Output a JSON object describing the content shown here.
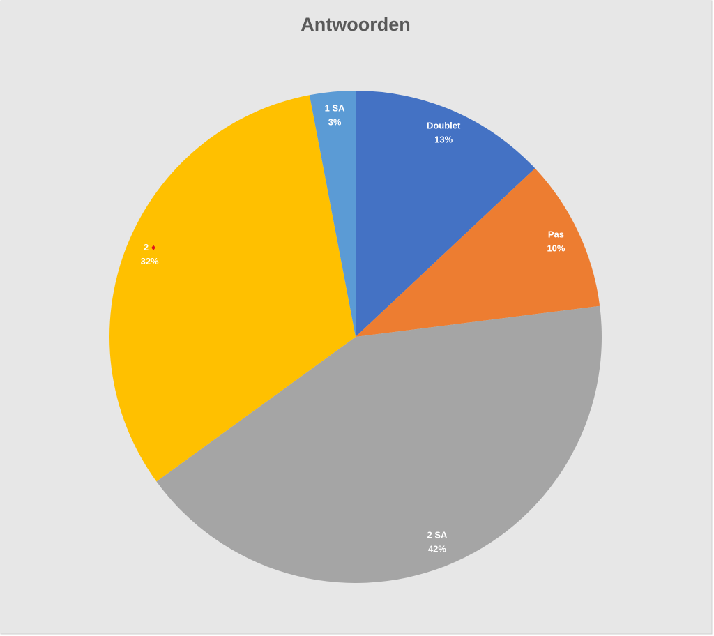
{
  "chart_data": {
    "type": "pie",
    "title": "Antwoorden",
    "categories": [
      "Doublet",
      "Pas",
      "2 SA",
      "2 ♦",
      "1 SA"
    ],
    "values": [
      13,
      10,
      42,
      32,
      3
    ],
    "value_labels": [
      "13%",
      "10%",
      "42%",
      "32%",
      "3%"
    ],
    "colors": [
      "#4472c4",
      "#ed7d31",
      "#a5a5a5",
      "#ffc000",
      "#5b9bd5"
    ]
  }
}
